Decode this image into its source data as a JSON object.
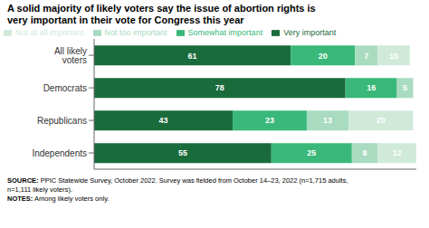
{
  "chart_data": {
    "type": "bar",
    "orientation": "horizontal",
    "stacked": true,
    "data_labels": true,
    "title": "A solid majority of likely voters say the issue of abortion rights is\nvery important in their vote for Congress this year",
    "categories": [
      "All likely voters",
      "Democrats",
      "Republicans",
      "Independents"
    ],
    "series": [
      {
        "name": "Very important",
        "color": "#1a6b3c",
        "values": [
          61,
          78,
          43,
          55
        ]
      },
      {
        "name": "Somewhat important",
        "color": "#3ab87a",
        "values": [
          20,
          16,
          23,
          25
        ]
      },
      {
        "name": "Not too important",
        "color": "#a8dbc0",
        "values": [
          7,
          5,
          13,
          8
        ]
      },
      {
        "name": "Not at all important",
        "color": "#d0ead9",
        "values": [
          10,
          0,
          20,
          12
        ]
      }
    ],
    "xlim": [
      0,
      100
    ],
    "tick_labels": "y",
    "legend": "top",
    "annotations": [
      "SOURCE: PPIC Statewide Survey, October 2022. Survey was fielded from October 14–23, 2022 (n=1,715 adults,",
      "n=1,111 likely voters).",
      "NOTES: Among likely voters only."
    ]
  }
}
